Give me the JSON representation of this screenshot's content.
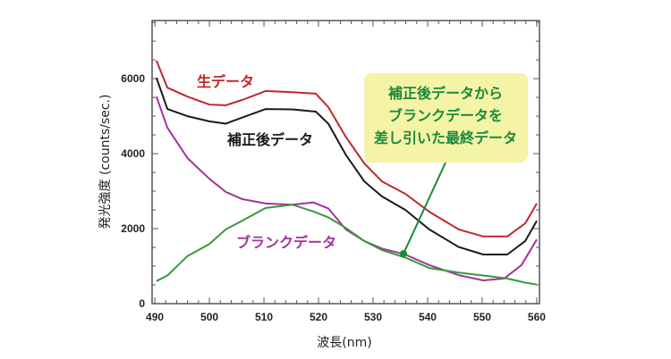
{
  "chart_data": {
    "type": "line",
    "xlabel": "波長(nm)",
    "ylabel": "発光強度 (counts/sec.)",
    "xlim": [
      489.5,
      560.5
    ],
    "ylim": [
      0,
      7550
    ],
    "xticks": [
      490,
      500,
      510,
      520,
      530,
      540,
      550,
      560
    ],
    "yticks": [
      0,
      2000,
      4000,
      6000
    ],
    "grid": false,
    "series": [
      {
        "name": "生データ",
        "color": "#c0272d",
        "x": [
          490.3,
          492.3,
          496,
          500,
          503,
          506,
          510.3,
          515.2,
          519.5,
          521.8,
          525,
          528.4,
          531.6,
          535.9,
          540.3,
          545.7,
          550.2,
          554.6,
          557.9,
          560
        ],
        "y": [
          6480,
          5760,
          5520,
          5310,
          5290,
          5430,
          5670,
          5640,
          5600,
          5240,
          4450,
          3740,
          3260,
          2930,
          2450,
          1980,
          1790,
          1790,
          2140,
          2670
        ]
      },
      {
        "name": "補正後データ",
        "color": "#1a1a1a",
        "x": [
          490.3,
          492.3,
          496,
          500,
          503,
          506,
          510.3,
          515.2,
          519.5,
          521.8,
          525,
          528.4,
          531.6,
          535.9,
          540.3,
          545.7,
          550.2,
          554.6,
          557.9,
          560
        ],
        "y": [
          6020,
          5190,
          5000,
          4860,
          4800,
          4960,
          5190,
          5180,
          5120,
          4800,
          3970,
          3260,
          2860,
          2500,
          1980,
          1510,
          1310,
          1310,
          1670,
          2210
        ]
      },
      {
        "name": "ブランクデータ",
        "color": "#a3339b",
        "x": [
          490.3,
          492.3,
          496,
          500,
          503,
          506,
          510.3,
          515.2,
          519,
          521.8,
          525,
          528.4,
          531.6,
          535.9,
          540.3,
          545.7,
          550.2,
          554,
          557.2,
          560
        ],
        "y": [
          5520,
          4690,
          3880,
          3330,
          2980,
          2790,
          2670,
          2640,
          2700,
          2540,
          1980,
          1670,
          1470,
          1310,
          1030,
          760,
          620,
          670,
          1030,
          1710
        ]
      },
      {
        "name": "補正後データからブランクデータを差し引いた最終データ",
        "color": "#3a9a3a",
        "x": [
          490.3,
          492.3,
          496,
          500,
          503,
          506,
          510.3,
          515.2,
          519,
          521.8,
          525,
          528.4,
          531.6,
          535.9,
          540.3,
          545.7,
          550.2,
          554.6,
          557.9,
          560
        ],
        "y": [
          600,
          750,
          1270,
          1590,
          1980,
          2210,
          2550,
          2640,
          2460,
          2300,
          2020,
          1670,
          1430,
          1230,
          950,
          830,
          750,
          670,
          560,
          510
        ]
      }
    ],
    "annotations": {
      "raw": "生データ",
      "corrected": "補正後データ",
      "blank": "ブランクデータ",
      "final_lines": [
        "補正後データから",
        "ブランクデータを",
        "差し引いた最終データ"
      ],
      "final_color": "#1a8a3a",
      "callout_fill": "#f5f3a6"
    }
  }
}
